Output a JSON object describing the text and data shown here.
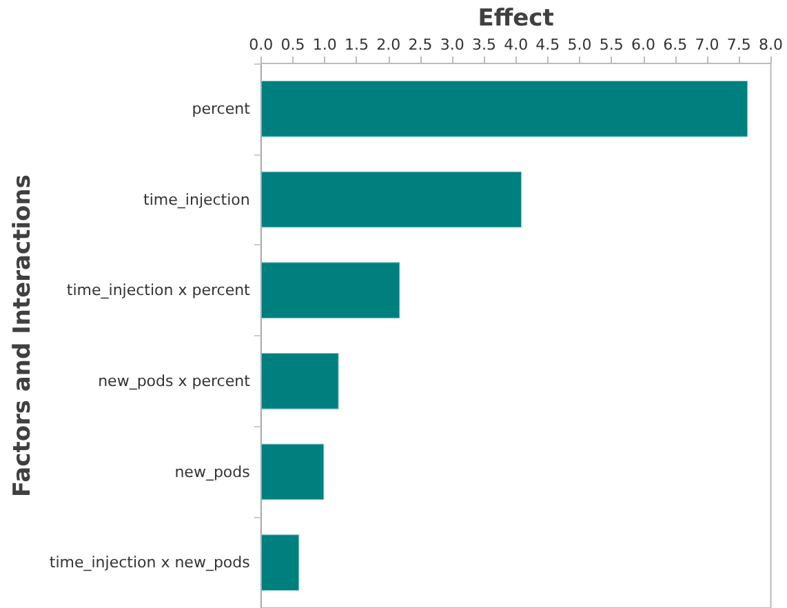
{
  "chart_data": {
    "type": "bar",
    "orientation": "horizontal",
    "xlabel": "Effect",
    "ylabel": "Factors and Interactions",
    "categories": [
      "percent",
      "time_injection",
      "time_injection x percent",
      "new_pods x percent",
      "new_pods",
      "time_injection x new_pods"
    ],
    "values": [
      7.64,
      4.09,
      2.18,
      1.22,
      0.99,
      0.6
    ],
    "color": "#007f7f",
    "xlim": [
      0,
      8
    ],
    "xticks": [
      {
        "value": 0,
        "label": "0.0"
      },
      0.5,
      {
        "value": 1,
        "label": "1.0"
      },
      1.5,
      {
        "value": 2,
        "label": "2.0"
      },
      2.5,
      {
        "value": 3,
        "label": "3.0"
      },
      3.5,
      {
        "value": 4,
        "label": "4.0"
      },
      4.5,
      {
        "value": 5,
        "label": "5.0"
      },
      5.5,
      {
        "value": 6,
        "label": "6.0"
      },
      6.5,
      {
        "value": 7,
        "label": "7.0"
      },
      7.5,
      {
        "value": 8,
        "label": "8.0"
      }
    ],
    "grid": false
  }
}
